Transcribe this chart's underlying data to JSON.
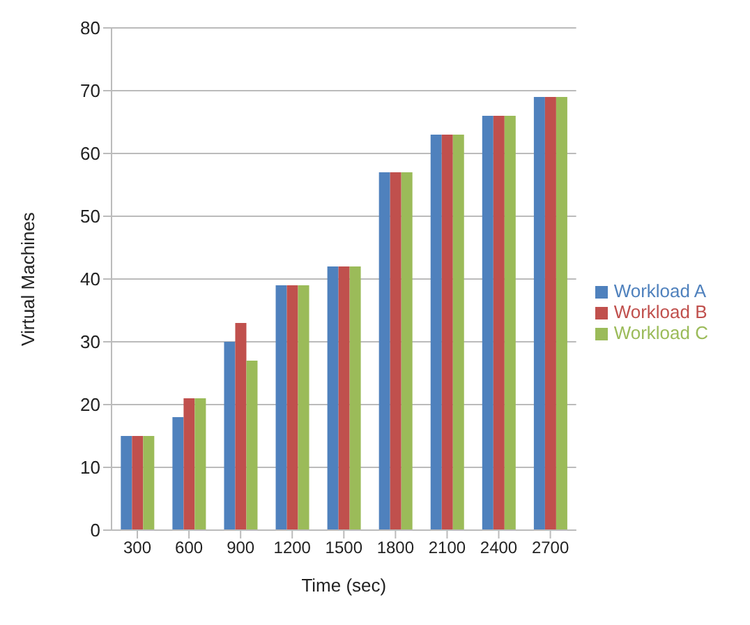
{
  "chart_data": {
    "type": "bar",
    "xlabel": "Time (sec)",
    "ylabel": "Virtual Machines",
    "categories": [
      "300",
      "600",
      "900",
      "1200",
      "1500",
      "1800",
      "2100",
      "2400",
      "2700"
    ],
    "series": [
      {
        "name": "Workload A",
        "color": "#4f81bd",
        "values": [
          15,
          18,
          30,
          39,
          42,
          57,
          63,
          66,
          69
        ]
      },
      {
        "name": "Workload B",
        "color": "#c0504d",
        "values": [
          15,
          21,
          33,
          39,
          42,
          57,
          63,
          66,
          69
        ]
      },
      {
        "name": "Workload C",
        "color": "#9bbb59",
        "values": [
          15,
          21,
          27,
          39,
          42,
          57,
          63,
          66,
          69
        ]
      }
    ],
    "ylim": [
      0,
      80
    ],
    "yticks": [
      0,
      10,
      20,
      30,
      40,
      50,
      60,
      70,
      80
    ],
    "grid": "y",
    "legend": "right"
  }
}
